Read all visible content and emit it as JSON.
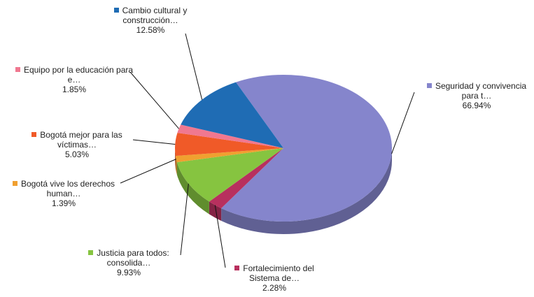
{
  "chart_data": {
    "type": "pie",
    "categories": [
      "Seguridad y convivencia para t…",
      "Fortalecimiento del Sistema de…",
      "Justicia para todos: consolida…",
      "Bogotá vive los derechos human…",
      "Bogotá mejor para las víctimas…",
      "Equipo por la educación para e…",
      "Cambio cultural y construcción…"
    ],
    "values": [
      66.94,
      2.28,
      9.93,
      1.39,
      5.03,
      1.85,
      12.58
    ],
    "value_labels": [
      "66.94%",
      "2.28%",
      "9.93%",
      "1.39%",
      "5.03%",
      "1.85%",
      "12.58%"
    ],
    "colors": [
      "#8585cc",
      "#b8305e",
      "#86c440",
      "#f0a030",
      "#f05a28",
      "#f07890",
      "#1f6cb4"
    ]
  }
}
